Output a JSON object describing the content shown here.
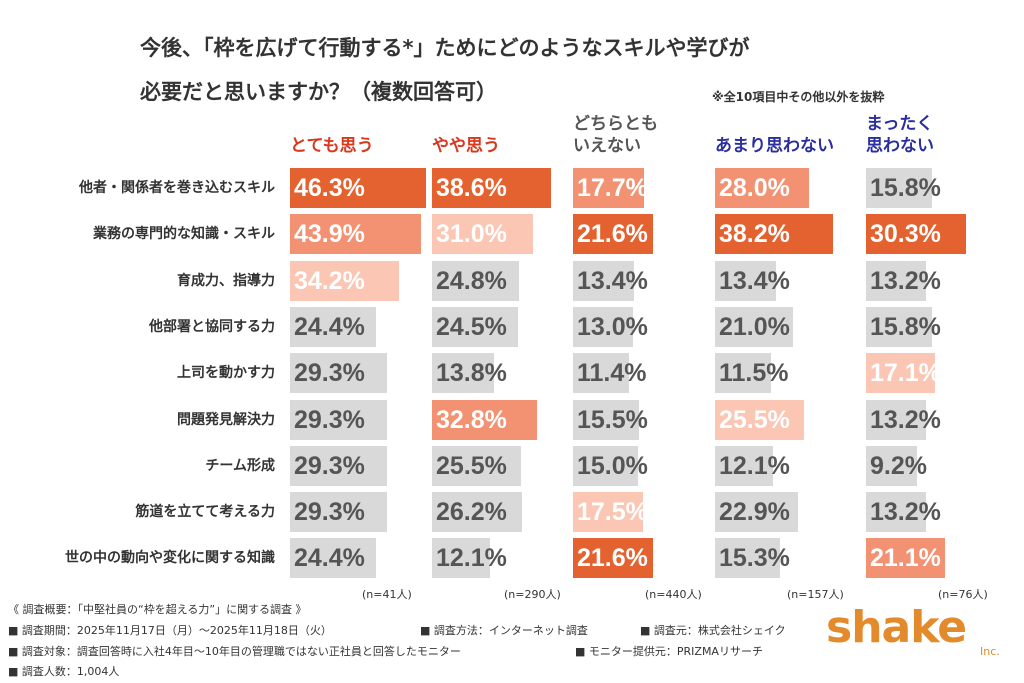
{
  "chart_data": {
    "type": "bar-table",
    "title": [
      "今後、「枠を広げて行動する*」ためにどのようなスキルや学びが",
      "必要だと思いますか？（複数回答可）"
    ],
    "note": "※全10項目中その他以外を抜粋",
    "categories": [
      "他者・関係者を巻き込むスキル",
      "業務の専門的な知識・スキル",
      "育成力、指導力",
      "他部署と協同する力",
      "上司を動かす力",
      "問題発見解決力",
      "チーム形成",
      "筋道を立てて考える力",
      "世の中の動向や変化に関する知識"
    ],
    "series": [
      {
        "name": "とても思う",
        "color": "#d9381e",
        "n_label": "(n=41人)",
        "values": [
          46.3,
          43.9,
          34.2,
          24.4,
          29.3,
          29.3,
          29.3,
          29.3,
          24.4
        ],
        "value_labels": [
          "46.3%",
          "43.9%",
          "34.2%",
          "24.4%",
          "29.3%",
          "29.3%",
          "29.3%",
          "29.3%",
          "24.4%"
        ]
      },
      {
        "name": "やや思う",
        "color": "#d9381e",
        "n_label": "(n=290人)",
        "values": [
          38.6,
          31.0,
          24.8,
          24.5,
          13.8,
          32.8,
          25.5,
          26.2,
          12.1
        ],
        "value_labels": [
          "38.6%",
          "31.0%",
          "24.8%",
          "24.5%",
          "13.8%",
          "32.8%",
          "25.5%",
          "26.2%",
          "12.1%"
        ]
      },
      {
        "name": "どちらとも\nいえない",
        "color": "#555555",
        "n_label": "(n=440人)",
        "values": [
          17.7,
          21.6,
          13.4,
          13.0,
          11.4,
          15.5,
          15.0,
          17.5,
          21.6
        ],
        "value_labels": [
          "17.7%",
          "21.6%",
          "13.4%",
          "13.0%",
          "11.4%",
          "15.5%",
          "15.0%",
          "17.5%",
          "21.6%"
        ]
      },
      {
        "name": "あまり思わない",
        "color": "#2b2f9e",
        "n_label": "(n=157人)",
        "values": [
          28.0,
          38.2,
          13.4,
          21.0,
          11.5,
          25.5,
          12.1,
          22.9,
          15.3
        ],
        "value_labels": [
          "28.0%",
          "38.2%",
          "13.4%",
          "21.0%",
          "11.5%",
          "25.5%",
          "12.1%",
          "22.9%",
          "15.3%"
        ]
      },
      {
        "name": "まったく\n思わない",
        "color": "#2b2f9e",
        "n_label": "(n=76人)",
        "values": [
          15.8,
          30.3,
          13.2,
          15.8,
          17.1,
          13.2,
          9.2,
          13.2,
          21.1
        ],
        "value_labels": [
          "15.8%",
          "30.3%",
          "13.2%",
          "15.8%",
          "17.1%",
          "13.2%",
          "9.2%",
          "13.2%",
          "21.1%"
        ]
      }
    ],
    "rank_colors": [
      "#e4622f",
      "#f39273",
      "#fbc6b4"
    ],
    "other_color": "#d9d9d9"
  },
  "survey": {
    "heading": "《 調査概要：「中堅社員の“枠を超える力”」に関する調査 》",
    "items": [
      [
        "■ 調査期間：2025年11月17日（月）〜2025年11月18日（火）",
        "■ 調査方法：インターネット調査",
        "■ 調査元：株式会社シェイク"
      ],
      [
        "■ 調査対象：調査回答時に入社4年目〜10年目の管理職ではない正社員と回答したモニター",
        "■ モニター提供元：PRIZMAリサーチ"
      ],
      [
        "■ 調査人数：1,004人"
      ]
    ]
  },
  "logo": {
    "name": "shake",
    "suffix": "Inc."
  }
}
